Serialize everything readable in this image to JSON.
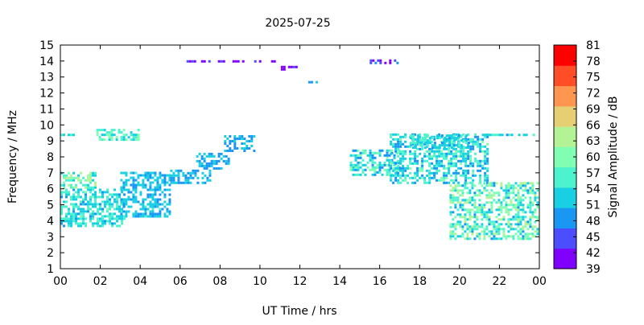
{
  "chart_data": {
    "type": "heatmap",
    "title": "2025-07-25",
    "xlabel": "UT Time / hrs",
    "ylabel": "Frequency / MHz",
    "xlim": [
      0,
      24
    ],
    "ylim": [
      1,
      15
    ],
    "x_ticks": [
      "00",
      "02",
      "04",
      "06",
      "08",
      "10",
      "12",
      "14",
      "16",
      "18",
      "20",
      "22",
      "00"
    ],
    "y_ticks": [
      "1",
      "2",
      "3",
      "4",
      "5",
      "6",
      "7",
      "8",
      "9",
      "10",
      "11",
      "12",
      "13",
      "14",
      "15"
    ],
    "grid": false,
    "colorbar": {
      "label": "Signal Amplitude / dB",
      "ticks": [
        "39",
        "42",
        "45",
        "48",
        "51",
        "54",
        "57",
        "60",
        "63",
        "66",
        "69",
        "72",
        "75",
        "78",
        "81"
      ],
      "min": 39,
      "max": 82.5,
      "colors": [
        "#8000ff",
        "#4c4dfc",
        "#1a96f3",
        "#19cfe2",
        "#4df3ce",
        "#80ffb4",
        "#b3f396",
        "#e6cf73",
        "#ff964f",
        "#ff4d28",
        "#ff0000"
      ]
    },
    "clusters": [
      {
        "x": [
          0.0,
          0.7
        ],
        "y": [
          9.3,
          9.5
        ],
        "amp": [
          52,
          58
        ]
      },
      {
        "x": [
          0.0,
          3.3
        ],
        "y": [
          3.6,
          6.0
        ],
        "amp": [
          50,
          59
        ]
      },
      {
        "x": [
          0.0,
          1.8
        ],
        "y": [
          6.0,
          7.0
        ],
        "amp": [
          53,
          66
        ]
      },
      {
        "x": [
          1.8,
          4.0
        ],
        "y": [
          9.0,
          9.8
        ],
        "amp": [
          51,
          62
        ]
      },
      {
        "x": [
          3.0,
          5.5
        ],
        "y": [
          4.2,
          7.0
        ],
        "amp": [
          49,
          55
        ]
      },
      {
        "x": [
          5.5,
          7.5
        ],
        "y": [
          6.3,
          7.2
        ],
        "amp": [
          48,
          54
        ]
      },
      {
        "x": [
          6.8,
          8.5
        ],
        "y": [
          7.2,
          8.2
        ],
        "amp": [
          48,
          53
        ]
      },
      {
        "x": [
          8.2,
          9.8
        ],
        "y": [
          8.3,
          9.3
        ],
        "amp": [
          47,
          53
        ]
      },
      {
        "x": [
          6.2,
          11.0
        ],
        "y": [
          13.9,
          14.1
        ],
        "amp": [
          39,
          44
        ]
      },
      {
        "x": [
          10.8,
          12.0
        ],
        "y": [
          13.4,
          13.7
        ],
        "amp": [
          39,
          43
        ]
      },
      {
        "x": [
          12.3,
          13.2
        ],
        "y": [
          12.6,
          12.8
        ],
        "amp": [
          48,
          52
        ]
      },
      {
        "x": [
          14.5,
          17.0
        ],
        "y": [
          6.8,
          8.5
        ],
        "amp": [
          48,
          62
        ]
      },
      {
        "x": [
          16.5,
          21.5
        ],
        "y": [
          6.3,
          9.4
        ],
        "amp": [
          48,
          60
        ]
      },
      {
        "x": [
          17.5,
          20.5
        ],
        "y": [
          8.5,
          9.4
        ],
        "amp": [
          50,
          57
        ]
      },
      {
        "x": [
          21.0,
          24.0
        ],
        "y": [
          9.3,
          9.5
        ],
        "amp": [
          50,
          58
        ]
      },
      {
        "x": [
          19.5,
          24.0
        ],
        "y": [
          2.8,
          6.5
        ],
        "amp": [
          50,
          66
        ]
      },
      {
        "x": [
          15.5,
          17.0
        ],
        "y": [
          13.8,
          14.1
        ],
        "amp": [
          39,
          48
        ]
      }
    ]
  }
}
